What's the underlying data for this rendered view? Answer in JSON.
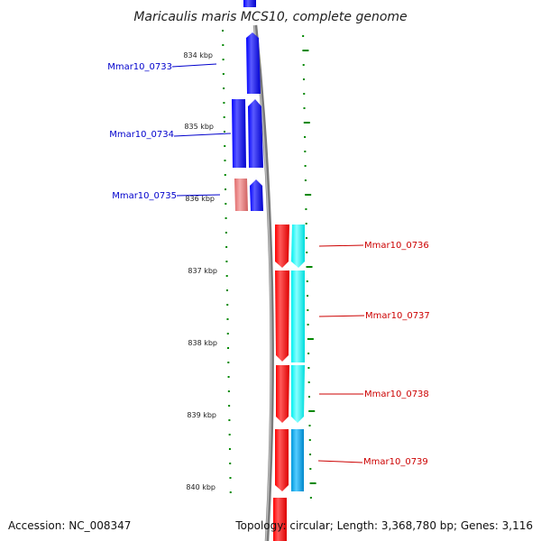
{
  "title": "Maricaulis maris MCS10, complete genome",
  "accession": "Accession: NC_008347",
  "topology": "Topology: circular; Length: 3,368,780 bp; Genes: 3,116",
  "kbp_labels": [
    "834 kbp",
    "835 kbp",
    "836 kbp",
    "837 kbp",
    "838 kbp",
    "839 kbp",
    "840 kbp"
  ],
  "genes_left": [
    "Mmar10_0733",
    "Mmar10_0734",
    "Mmar10_0735"
  ],
  "genes_right": [
    "Mmar10_0736",
    "Mmar10_0737",
    "Mmar10_0738",
    "Mmar10_0739"
  ],
  "colors": {
    "forward_cds": "#0000ee",
    "forward_rna": "#ee7777",
    "reverse_cds": "#ee0000",
    "reverse_cyan": "#00eeee",
    "reverse_blue": "#00aaee",
    "tick": "#008800",
    "backbone": "#888888",
    "left_label": "#0000cc",
    "right_label": "#cc0000"
  }
}
